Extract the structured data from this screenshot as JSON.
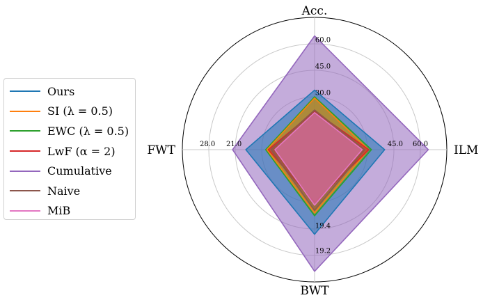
{
  "chart_data": {
    "type": "radar",
    "axes": [
      "Acc.",
      "ILM",
      "BWT",
      "FWT"
    ],
    "ticks": {
      "Acc.": [
        "30.0",
        "45.0",
        "60.0"
      ],
      "ILM": [
        "45.0",
        "60.0"
      ],
      "BWT": [
        "19.4",
        "19.2"
      ],
      "FWT": [
        "21.0",
        "28.0"
      ]
    },
    "legend_position": "left",
    "series": [
      {
        "name": "Cumulative",
        "color": "#9467bd",
        "values": [
          0.86,
          0.86,
          0.92,
          0.62
        ]
      },
      {
        "name": "Ours",
        "color": "#1f77b4",
        "values": [
          0.45,
          0.53,
          0.64,
          0.52
        ]
      },
      {
        "name": "EWC (λ = 0.5)",
        "color": "#2ca02c",
        "values": [
          0.4,
          0.43,
          0.5,
          0.37
        ]
      },
      {
        "name": "SI (λ = 0.5)",
        "color": "#ff7f0e",
        "values": [
          0.39,
          0.41,
          0.48,
          0.36
        ]
      },
      {
        "name": "LwF (α = 2)",
        "color": "#d62728",
        "values": [
          0.29,
          0.41,
          0.4,
          0.35
        ]
      },
      {
        "name": "Naive",
        "color": "#8c564b",
        "values": [
          0.3,
          0.38,
          0.46,
          0.33
        ]
      },
      {
        "name": "MiB",
        "color": "#e377c2",
        "values": [
          0.28,
          0.36,
          0.42,
          0.3
        ]
      }
    ]
  },
  "legend": {
    "items": [
      {
        "label": "Ours",
        "color": "#1f77b4"
      },
      {
        "label": "SI (λ = 0.5)",
        "color": "#ff7f0e"
      },
      {
        "label": "EWC (λ = 0.5)",
        "color": "#2ca02c"
      },
      {
        "label": "LwF (α = 2)",
        "color": "#d62728"
      },
      {
        "label": "Cumulative",
        "color": "#9467bd"
      },
      {
        "label": "Naive",
        "color": "#8c564b"
      },
      {
        "label": "MiB",
        "color": "#e377c2"
      }
    ]
  }
}
